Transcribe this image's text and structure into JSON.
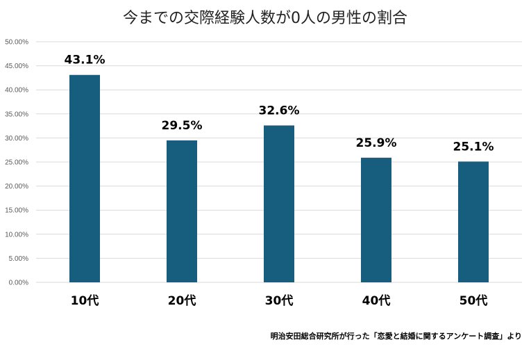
{
  "chart_data": {
    "type": "bar",
    "title": "今までの交際経験人数が0人の男性の割合",
    "categories": [
      "10代",
      "20代",
      "30代",
      "40代",
      "50代"
    ],
    "values": [
      43.1,
      29.5,
      32.6,
      25.9,
      25.1
    ],
    "data_labels": [
      "43.1%",
      "29.5%",
      "32.6%",
      "25.9%",
      "25.1%"
    ],
    "y_ticks": [
      0,
      5,
      10,
      15,
      20,
      25,
      30,
      35,
      40,
      45,
      50
    ],
    "y_tick_labels": [
      "0.00%",
      "5.00%",
      "10.00%",
      "15.00%",
      "20.00%",
      "25.00%",
      "30.00%",
      "35.00%",
      "40.00%",
      "45.00%",
      "50.00%"
    ],
    "ylim": [
      0,
      50
    ],
    "xlabel": "",
    "ylabel": "",
    "grid": true,
    "legend": "none"
  },
  "source_note": "明治安田総合研究所が行った「恋愛と結婚に関するアンケート調査」より",
  "colors": {
    "bar": "#175e7e",
    "grid": "#d9d9d9"
  }
}
